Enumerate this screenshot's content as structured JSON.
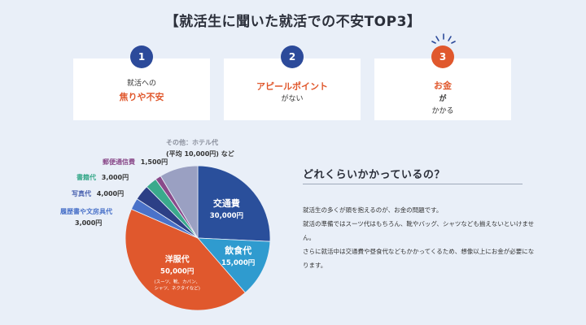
{
  "title": "【就活生に聞いた就活での不安TOP3】",
  "cards": [
    {
      "number": "1",
      "line1": "就活への",
      "line2": "焦りや不安"
    },
    {
      "number": "2",
      "line1": "アピールポイント",
      "line2": "がない"
    },
    {
      "number": "3",
      "line1_main": "お金",
      "line1_suffix": "が",
      "line2": "かかる"
    }
  ],
  "colors": {
    "blue_badge": "#2c4a9a",
    "orange": "#e0582d",
    "background": "#e9eff8"
  },
  "chart_data": {
    "type": "pie",
    "unit": "円",
    "slices": [
      {
        "label": "交通費",
        "value": 30000,
        "value_text": "30,000円",
        "color": "#2a4f9b"
      },
      {
        "label": "飲食代",
        "value": 15000,
        "value_text": "15,000円",
        "color": "#2f9bcf"
      },
      {
        "label": "洋服代",
        "value": 50000,
        "value_text": "50,000円",
        "note": "(スーツ、靴、カバン、シャツ、ネクタイなど)",
        "color": "#e0582d"
      },
      {
        "label": "履歴書や文房具代",
        "value": 3000,
        "value_text": "3,000円",
        "color": "#4a72c9"
      },
      {
        "label": "写真代",
        "value": 4000,
        "value_text": "4,000円",
        "color": "#2c3f86"
      },
      {
        "label": "書籍代",
        "value": 3000,
        "value_text": "3,000円",
        "color": "#3aaa8c"
      },
      {
        "label": "郵便通信費",
        "value": 1500,
        "value_text": "1,500円",
        "color": "#8a4a8a"
      },
      {
        "label": "その他：ホテル代",
        "value": 10000,
        "value_text": "(平均 10,000円)",
        "suffix": "など",
        "color": "#9aa0c2"
      }
    ]
  },
  "question": {
    "title": "どれくらいかかっているの？",
    "paragraphs": [
      "就活生の多くが頭を抱えるのが、お金の問題です。",
      "就活の準備ではスーツ代はもちろん、靴やバッグ、シャツなども揃えないといけません。",
      "さらに就活中は交通費や昼食代などもかかってくるため、想像以上にお金が必要になります。"
    ]
  }
}
